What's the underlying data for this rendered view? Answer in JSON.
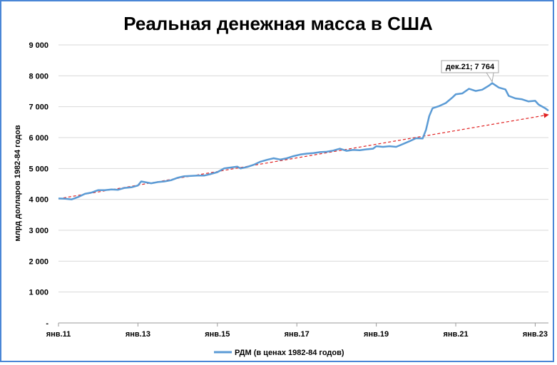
{
  "chart_data": {
    "type": "line",
    "title": "Реальная денежная масса в США",
    "ylabel": "млрд долларов 1982-84 годов",
    "ylim": [
      0,
      9000
    ],
    "y_ticks": [
      {
        "value": 0,
        "label": "-"
      },
      {
        "value": 1000,
        "label": "1 000"
      },
      {
        "value": 2000,
        "label": "2 000"
      },
      {
        "value": 3000,
        "label": "3 000"
      },
      {
        "value": 4000,
        "label": "4 000"
      },
      {
        "value": 5000,
        "label": "5 000"
      },
      {
        "value": 6000,
        "label": "6 000"
      },
      {
        "value": 7000,
        "label": "7 000"
      },
      {
        "value": 8000,
        "label": "8 000"
      },
      {
        "value": 9000,
        "label": "9 000"
      }
    ],
    "x_range": [
      "2011-01",
      "2023-05"
    ],
    "x_ticks": [
      {
        "date": "2011-01",
        "label": "янв.11"
      },
      {
        "date": "2013-01",
        "label": "янв.13"
      },
      {
        "date": "2015-01",
        "label": "янв.15"
      },
      {
        "date": "2017-01",
        "label": "янв.17"
      },
      {
        "date": "2019-01",
        "label": "янв.19"
      },
      {
        "date": "2021-01",
        "label": "янв.21"
      },
      {
        "date": "2023-01",
        "label": "янв.23"
      }
    ],
    "grid": "horizontal",
    "legend_position": "bottom",
    "series": [
      {
        "name": "РДМ (в ценах 1982-84 годов)",
        "color": "#5b9bd5",
        "points": [
          [
            "2011-01",
            4030
          ],
          [
            "2011-03",
            4020
          ],
          [
            "2011-05",
            4000
          ],
          [
            "2011-07",
            4080
          ],
          [
            "2011-09",
            4180
          ],
          [
            "2011-11",
            4220
          ],
          [
            "2012-01",
            4300
          ],
          [
            "2012-03",
            4300
          ],
          [
            "2012-05",
            4320
          ],
          [
            "2012-07",
            4310
          ],
          [
            "2012-09",
            4370
          ],
          [
            "2012-11",
            4390
          ],
          [
            "2013-01",
            4450
          ],
          [
            "2013-02",
            4580
          ],
          [
            "2013-03",
            4560
          ],
          [
            "2013-05",
            4520
          ],
          [
            "2013-07",
            4560
          ],
          [
            "2013-09",
            4580
          ],
          [
            "2013-11",
            4620
          ],
          [
            "2014-01",
            4700
          ],
          [
            "2014-03",
            4750
          ],
          [
            "2014-05",
            4760
          ],
          [
            "2014-07",
            4770
          ],
          [
            "2014-09",
            4770
          ],
          [
            "2014-11",
            4820
          ],
          [
            "2015-01",
            4880
          ],
          [
            "2015-03",
            5000
          ],
          [
            "2015-05",
            5030
          ],
          [
            "2015-07",
            5060
          ],
          [
            "2015-08",
            5000
          ],
          [
            "2015-10",
            5050
          ],
          [
            "2015-12",
            5120
          ],
          [
            "2016-02",
            5220
          ],
          [
            "2016-04",
            5280
          ],
          [
            "2016-06",
            5330
          ],
          [
            "2016-08",
            5290
          ],
          [
            "2016-10",
            5330
          ],
          [
            "2016-12",
            5400
          ],
          [
            "2017-02",
            5450
          ],
          [
            "2017-04",
            5480
          ],
          [
            "2017-06",
            5500
          ],
          [
            "2017-08",
            5530
          ],
          [
            "2017-10",
            5540
          ],
          [
            "2017-12",
            5580
          ],
          [
            "2018-02",
            5640
          ],
          [
            "2018-04",
            5570
          ],
          [
            "2018-06",
            5600
          ],
          [
            "2018-08",
            5590
          ],
          [
            "2018-10",
            5620
          ],
          [
            "2018-12",
            5640
          ],
          [
            "2019-01",
            5720
          ],
          [
            "2019-03",
            5700
          ],
          [
            "2019-05",
            5720
          ],
          [
            "2019-07",
            5700
          ],
          [
            "2019-09",
            5790
          ],
          [
            "2019-11",
            5880
          ],
          [
            "2020-01",
            5980
          ],
          [
            "2020-03",
            5970
          ],
          [
            "2020-04",
            6250
          ],
          [
            "2020-05",
            6700
          ],
          [
            "2020-06",
            6950
          ],
          [
            "2020-08",
            7020
          ],
          [
            "2020-10",
            7120
          ],
          [
            "2020-12",
            7300
          ],
          [
            "2021-01",
            7400
          ],
          [
            "2021-03",
            7430
          ],
          [
            "2021-05",
            7580
          ],
          [
            "2021-07",
            7510
          ],
          [
            "2021-09",
            7550
          ],
          [
            "2021-11",
            7680
          ],
          [
            "2021-12",
            7764
          ],
          [
            "2022-02",
            7620
          ],
          [
            "2022-04",
            7560
          ],
          [
            "2022-05",
            7350
          ],
          [
            "2022-07",
            7270
          ],
          [
            "2022-09",
            7240
          ],
          [
            "2022-11",
            7170
          ],
          [
            "2023-01",
            7190
          ],
          [
            "2023-02",
            7070
          ],
          [
            "2023-04",
            6950
          ],
          [
            "2023-05",
            6870
          ]
        ]
      }
    ],
    "trend_line": {
      "color": "#e02020",
      "style": "dashed-arrow",
      "start": [
        "2011-01",
        4020
      ],
      "end": [
        "2023-05",
        6740
      ]
    },
    "annotation": {
      "date": "2021-12",
      "value": 7764,
      "label": "дек.21; 7 764"
    }
  }
}
